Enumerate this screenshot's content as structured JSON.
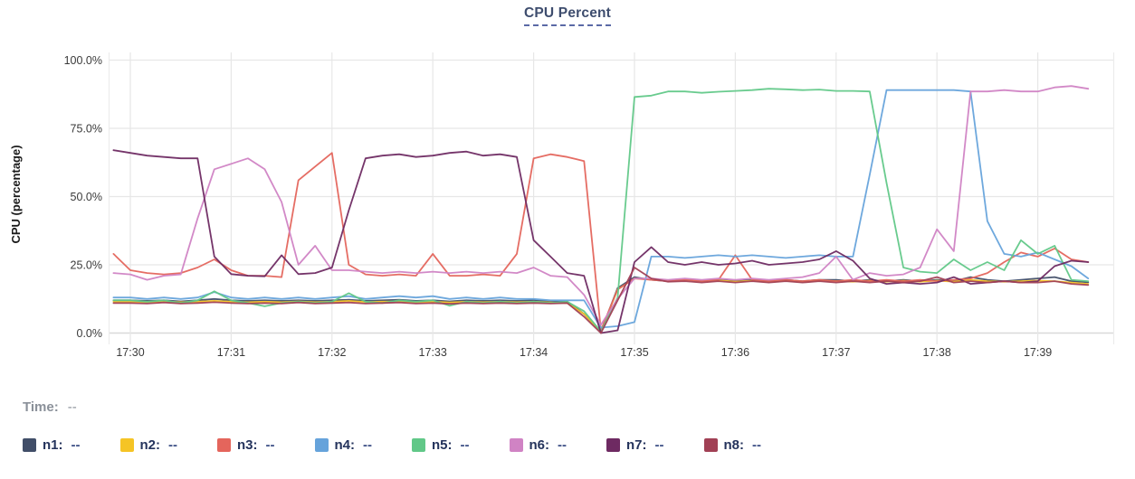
{
  "chart": {
    "title": "CPU Percent",
    "y_axis_label": "CPU (percentage)"
  },
  "hover_readout": {
    "time_label": "Time:",
    "time_value": "--"
  },
  "chart_data": {
    "type": "line",
    "title": "CPU Percent",
    "ylabel": "CPU (percentage)",
    "ylim": [
      0,
      100
    ],
    "grid": true,
    "legend_position": "bottom",
    "x_start": "17:29:50",
    "x_step_seconds": 10,
    "x_ticks": [
      "17:30",
      "17:31",
      "17:32",
      "17:33",
      "17:34",
      "17:35",
      "17:36",
      "17:37",
      "17:38",
      "17:39"
    ],
    "y_ticks": [
      0,
      25,
      50,
      75,
      100
    ],
    "y_tick_labels": [
      "0.0%",
      "25.0%",
      "50.0%",
      "75.0%",
      "100.0%"
    ],
    "series": [
      {
        "name": "n1",
        "color": "#414e68",
        "legend_value": "--",
        "values": [
          12,
          12,
          11.8,
          12,
          11.6,
          12,
          12.5,
          12,
          11.8,
          12,
          11.8,
          12,
          11.8,
          12,
          12.2,
          11.8,
          12,
          12.2,
          11.8,
          12,
          11.6,
          12,
          11.8,
          12,
          11.8,
          12,
          11.6,
          11.5,
          7,
          0.5,
          16.5,
          20.5,
          19.5,
          19,
          19.5,
          19,
          19.5,
          19,
          19.5,
          19,
          19.5,
          19,
          19.5,
          19.5,
          19,
          19.5,
          19,
          19.5,
          19,
          19.5,
          19,
          20.5,
          19.5,
          19,
          19.5,
          20,
          20.5,
          19,
          18.6
        ]
      },
      {
        "name": "n2",
        "color": "#f5c425",
        "legend_value": "--",
        "values": [
          11.5,
          11.5,
          11.3,
          11.6,
          11.3,
          11.5,
          11.8,
          11.5,
          11.3,
          11.5,
          11.3,
          11.6,
          11.3,
          11.5,
          11.8,
          11.4,
          11.5,
          11.6,
          11.3,
          11.5,
          11.2,
          11.5,
          11.3,
          11.5,
          11.3,
          11.5,
          11.2,
          11,
          7,
          0.5,
          16,
          20,
          19.8,
          19.2,
          19.5,
          19,
          19.3,
          18.8,
          19.2,
          18.8,
          19.2,
          18.8,
          19.2,
          19,
          18.8,
          19.2,
          18.8,
          19.2,
          18.8,
          19.2,
          18.8,
          19.5,
          19,
          18.8,
          19,
          19.2,
          19,
          18.5,
          18
        ]
      },
      {
        "name": "n3",
        "color": "#e4655c",
        "legend_value": "--",
        "values": [
          29,
          23,
          22,
          21.5,
          22,
          24,
          27,
          23,
          21,
          21,
          20.5,
          56,
          61,
          66,
          25,
          21.5,
          21,
          21.5,
          21,
          29,
          21,
          21,
          21.5,
          21,
          29,
          64,
          65.5,
          64.5,
          63,
          1,
          16,
          20,
          19.5,
          19,
          19.5,
          19,
          19.5,
          28.5,
          19.5,
          19,
          19.5,
          19,
          19.5,
          19,
          19.5,
          19,
          19.5,
          19,
          19.5,
          19,
          19.5,
          20,
          22,
          26,
          29.5,
          28,
          31,
          27,
          26
        ]
      },
      {
        "name": "n4",
        "color": "#66a3db",
        "legend_value": "--",
        "values": [
          13,
          13,
          12.5,
          13,
          12.5,
          13,
          15,
          13,
          12.5,
          13,
          12.5,
          13,
          12.5,
          13,
          13.5,
          12.5,
          13,
          13.5,
          13,
          13.5,
          12.5,
          13,
          12.5,
          13,
          12.5,
          12.5,
          12,
          12,
          12,
          2,
          2.5,
          4,
          28,
          28,
          27.5,
          28,
          28.5,
          28,
          28.5,
          28,
          27.5,
          28,
          28.5,
          28,
          28,
          58,
          89,
          89,
          89,
          89,
          89,
          88.5,
          41,
          29,
          28,
          29.5,
          27,
          24.5,
          20
        ]
      },
      {
        "name": "n5",
        "color": "#61c888",
        "legend_value": "--",
        "values": [
          12,
          12,
          11.5,
          12,
          11,
          12,
          15.3,
          12,
          11,
          9.8,
          11,
          11.5,
          11,
          11.5,
          14.6,
          11.5,
          11,
          12,
          11.5,
          12,
          10,
          11.5,
          11,
          11.5,
          11,
          11.5,
          11,
          11.5,
          8,
          0.5,
          13,
          86.5,
          87,
          88.5,
          88.5,
          88,
          88.4,
          88.7,
          89,
          89.5,
          89.3,
          89,
          89.2,
          88.7,
          88.7,
          88.5,
          55,
          24,
          22.5,
          22,
          27,
          23,
          26,
          23,
          34,
          29,
          32,
          19.5,
          19
        ]
      },
      {
        "name": "n6",
        "color": "#d083c4",
        "legend_value": "--",
        "values": [
          22,
          21.5,
          19.5,
          21,
          21.5,
          42,
          60,
          62,
          64,
          60,
          48,
          25,
          32,
          23,
          23,
          22.5,
          22,
          22.5,
          22,
          22.5,
          22,
          22.5,
          22,
          22.5,
          22,
          24,
          21,
          20.5,
          14,
          3,
          12.5,
          20,
          20,
          19.5,
          20,
          19.5,
          20,
          19.5,
          20,
          19.5,
          20,
          20.5,
          22,
          28,
          19.5,
          22,
          21,
          21.5,
          24,
          38,
          30,
          88.5,
          88.5,
          89,
          88.5,
          88.5,
          90,
          90.5,
          89.5
        ]
      },
      {
        "name": "n7",
        "color": "#6e2a62",
        "legend_value": "--",
        "values": [
          67,
          66,
          65,
          64.5,
          64,
          64,
          28,
          21.6,
          21,
          20.8,
          28.5,
          21.6,
          22,
          24,
          45,
          64,
          65,
          65.5,
          64.5,
          65,
          66,
          66.5,
          65,
          65.5,
          64.5,
          34,
          28,
          22,
          21,
          0,
          1,
          26,
          31.5,
          26,
          25,
          26,
          25,
          25.5,
          26.5,
          25,
          25.5,
          26,
          27,
          30,
          26.5,
          20,
          18,
          18.5,
          18,
          18.5,
          20.5,
          18,
          18.5,
          19,
          18.5,
          19,
          24.5,
          26.5,
          26
        ]
      },
      {
        "name": "n8",
        "color": "#a14055",
        "legend_value": "--",
        "values": [
          11,
          11,
          10.8,
          11.2,
          10.8,
          11,
          11.3,
          11,
          10.8,
          11,
          10.8,
          11.2,
          10.8,
          11,
          11.2,
          10.8,
          11,
          11.2,
          10.8,
          11,
          10.7,
          11,
          10.8,
          11,
          10.8,
          11,
          10.8,
          11,
          6,
          0,
          12,
          24,
          20,
          18.8,
          19,
          18.5,
          19,
          18.5,
          19,
          18.5,
          19,
          18.5,
          19,
          18.5,
          19,
          18.5,
          19,
          18.5,
          19,
          20.5,
          18.5,
          19,
          18.5,
          19,
          18.5,
          18.5,
          19,
          18,
          17.6
        ]
      }
    ]
  }
}
